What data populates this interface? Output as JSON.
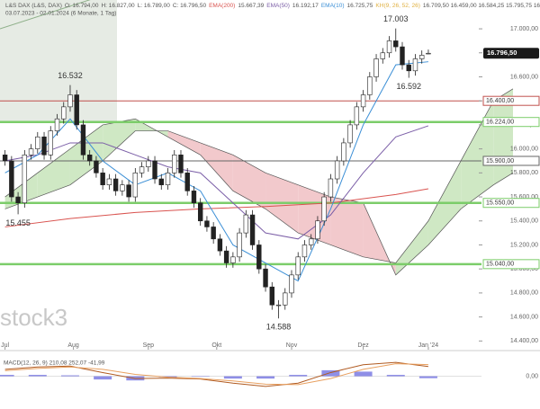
{
  "chart_data": {
    "type": "candlestick",
    "header": {
      "instrument": "L&S DAX (L&S, DAX)",
      "ohlc": [
        "O: 16.794,00",
        "H: 16.827,00",
        "L: 16.789,00",
        "C: 16.796,50"
      ],
      "indicators": [
        {
          "name": "EMA(200)",
          "value": "15.667,39",
          "color": "#d9534f"
        },
        {
          "name": "EMA(50)",
          "value": "16.192,17",
          "color": "#7b5ea7"
        },
        {
          "name": "EMA(10)",
          "value": "16.725,75",
          "color": "#3b8fd6"
        },
        {
          "name": "KH(9, 26, 52, 26)",
          "value": "16.709,50 16.459,00 16.584,25 15.795,75 16.796,50",
          "color": "#e0b040"
        }
      ],
      "range": "03.07.2023 - 02.01.2024 (6 Monate, 1 Tag)"
    },
    "watermark": "stock3",
    "xlim": [
      -1,
      156
    ],
    "ylim": [
      14350,
      17240
    ],
    "xticks": [
      {
        "value": 0,
        "label": "Jul"
      },
      {
        "value": 21,
        "label": "Aug"
      },
      {
        "value": 44,
        "label": "Sep"
      },
      {
        "value": 65,
        "label": "Okt"
      },
      {
        "value": 88,
        "label": "Nov"
      },
      {
        "value": 110,
        "label": "Dez"
      },
      {
        "value": 130,
        "label": "Jan '24"
      }
    ],
    "yticks": [
      {
        "value": 14400,
        "label": "14.400,00"
      },
      {
        "value": 14600,
        "label": "14.600,00"
      },
      {
        "value": 14800,
        "label": "14.800,00"
      },
      {
        "value": 15000,
        "label": "15.000,00"
      },
      {
        "value": 15200,
        "label": "15.200,00"
      },
      {
        "value": 15400,
        "label": "15.400,00"
      },
      {
        "value": 15600,
        "label": "15.600,00"
      },
      {
        "value": 15800,
        "label": "15.800,00"
      },
      {
        "value": 16000,
        "label": "16.000,00"
      },
      {
        "value": 16200,
        "label": "16.200,00"
      },
      {
        "value": 16400,
        "label": "16.400,00"
      },
      {
        "value": 16600,
        "label": "16.600,00"
      },
      {
        "value": 16800,
        "label": "16.800,00"
      },
      {
        "value": 17000,
        "label": "17.000,00"
      }
    ],
    "candles": {
      "x": [
        0,
        2,
        4,
        6,
        8,
        10,
        12,
        14,
        16,
        18,
        20,
        22,
        24,
        26,
        28,
        30,
        32,
        34,
        36,
        38,
        40,
        42,
        44,
        46,
        48,
        50,
        52,
        54,
        56,
        58,
        60,
        62,
        64,
        66,
        68,
        70,
        72,
        74,
        76,
        78,
        80,
        82,
        84,
        86,
        88,
        90,
        92,
        94,
        96,
        98,
        100,
        102,
        104,
        106,
        108,
        110,
        112,
        114,
        116,
        118,
        120,
        122,
        124,
        126,
        128,
        130
      ],
      "open": [
        15950,
        15900,
        15600,
        15550,
        15950,
        16000,
        16100,
        15950,
        16150,
        16250,
        16350,
        16450,
        16200,
        15950,
        15900,
        15800,
        15700,
        15750,
        15650,
        15700,
        15600,
        15800,
        15850,
        15900,
        15750,
        15700,
        15800,
        15950,
        15800,
        15650,
        15550,
        15400,
        15350,
        15250,
        15150,
        15050,
        15100,
        15300,
        15450,
        15200,
        15000,
        14850,
        14700,
        14700,
        14800,
        14950,
        15100,
        15200,
        15250,
        15400,
        15600,
        15750,
        15900,
        16050,
        16200,
        16350,
        16450,
        16600,
        16750,
        16800,
        16900,
        16850,
        16700,
        16650,
        16750,
        16794
      ],
      "high": [
        15990,
        15940,
        15640,
        15990,
        16040,
        16140,
        16140,
        16190,
        16290,
        16390,
        16532,
        16490,
        16240,
        15990,
        15940,
        15840,
        15790,
        15790,
        15740,
        15740,
        15840,
        15890,
        15940,
        15940,
        15790,
        15840,
        15990,
        15990,
        15840,
        15690,
        15590,
        15440,
        15390,
        15290,
        15190,
        15140,
        15340,
        15490,
        15490,
        15240,
        15040,
        14890,
        14740,
        14840,
        14990,
        15140,
        15240,
        15290,
        15440,
        15640,
        15790,
        15940,
        16090,
        16240,
        16390,
        16490,
        16640,
        16790,
        16840,
        16940,
        17003,
        16890,
        16740,
        16790,
        16820,
        16827
      ],
      "low": [
        15860,
        15560,
        15455,
        15510,
        15910,
        15960,
        15910,
        15910,
        16110,
        16210,
        16310,
        16160,
        15910,
        15860,
        15760,
        15660,
        15660,
        15610,
        15610,
        15560,
        15560,
        15760,
        15810,
        15710,
        15660,
        15660,
        15760,
        15760,
        15610,
        15510,
        15360,
        15310,
        15210,
        15110,
        15010,
        15010,
        15060,
        15260,
        15160,
        14960,
        14810,
        14660,
        14588,
        14660,
        14760,
        14910,
        15060,
        15160,
        15210,
        15360,
        15560,
        15710,
        15860,
        16010,
        16160,
        16310,
        16410,
        16560,
        16710,
        16760,
        16810,
        16660,
        16592,
        16610,
        16710,
        16789
      ],
      "close": [
        15900,
        15600,
        15550,
        15950,
        16000,
        16100,
        15950,
        16150,
        16250,
        16350,
        16450,
        16200,
        15950,
        15900,
        15800,
        15700,
        15750,
        15650,
        15700,
        15600,
        15800,
        15850,
        15900,
        15750,
        15700,
        15800,
        15950,
        15800,
        15650,
        15550,
        15400,
        15350,
        15250,
        15150,
        15050,
        15100,
        15300,
        15450,
        15200,
        15000,
        14850,
        14700,
        14700,
        14800,
        14950,
        15100,
        15200,
        15250,
        15400,
        15600,
        15750,
        15900,
        16050,
        16200,
        16350,
        16450,
        16600,
        16750,
        16800,
        16900,
        16850,
        16700,
        16650,
        16750,
        16780,
        16796.5
      ]
    },
    "lines": [
      {
        "name": "EMA(200)",
        "color": "#d9534f",
        "x": [
          0,
          20,
          40,
          60,
          80,
          100,
          120,
          130
        ],
        "values": [
          15350,
          15420,
          15470,
          15500,
          15520,
          15550,
          15620,
          15667.39
        ]
      },
      {
        "name": "EMA(50)",
        "color": "#7b5ea7",
        "x": [
          0,
          10,
          20,
          30,
          40,
          50,
          60,
          70,
          80,
          90,
          100,
          110,
          120,
          130
        ],
        "values": [
          15900,
          15950,
          16050,
          16050,
          15950,
          15850,
          15800,
          15550,
          15300,
          15250,
          15450,
          15800,
          16100,
          16192.17
        ]
      },
      {
        "name": "EMA(10)",
        "color": "#3b8fd6",
        "x": [
          0,
          10,
          20,
          30,
          40,
          50,
          60,
          70,
          80,
          90,
          100,
          110,
          120,
          130
        ],
        "values": [
          15800,
          15950,
          16250,
          15900,
          15700,
          15800,
          15650,
          15200,
          15050,
          14900,
          15500,
          16200,
          16700,
          16725.75
        ]
      }
    ],
    "cloud": {
      "x": [
        0,
        10,
        20,
        30,
        40,
        50,
        60,
        70,
        80,
        90,
        100,
        110,
        120,
        130,
        140,
        150,
        156
      ],
      "span_a": [
        15600,
        15800,
        16000,
        16200,
        16250,
        16100,
        15950,
        15650,
        15500,
        15300,
        15200,
        15100,
        15050,
        15400,
        15900,
        16400,
        16500
      ],
      "span_b": [
        15500,
        15600,
        15700,
        15900,
        16150,
        16150,
        16050,
        15950,
        15800,
        15700,
        15600,
        15550,
        14950,
        15200,
        15500,
        15700,
        15800
      ],
      "up_color": "#cfe8c4",
      "down_color": "#f2c9cc"
    },
    "levels": [
      {
        "value": 16400,
        "label": "16.400,00",
        "color": "#c0504d"
      },
      {
        "value": 16224,
        "label": "16.224,00",
        "color": "#7ccd6a"
      },
      {
        "value": 15900,
        "label": "15.900,00",
        "color": "#666666"
      },
      {
        "value": 15550,
        "label": "15.550,00",
        "color": "#7ccd6a"
      },
      {
        "value": 15040,
        "label": "15.040,00",
        "color": "#7ccd6a"
      }
    ],
    "last_price": {
      "value": 16796.5,
      "label": "16.796,50"
    },
    "annotations": [
      {
        "x": 120,
        "value": 17003,
        "label": "17.003",
        "side": "above"
      },
      {
        "x": 124,
        "value": 16592,
        "label": "16.592",
        "side": "below"
      },
      {
        "x": 84,
        "value": 14588,
        "label": "14.588",
        "side": "below"
      },
      {
        "x": 20,
        "value": 16532,
        "label": "16.532",
        "side": "above"
      },
      {
        "x": 4,
        "value": 15455,
        "label": "15.455",
        "side": "below"
      }
    ],
    "macd": {
      "legend": "MACD(12, 26, 9) 210,08 252,07 -41,99",
      "ylim": [
        -300,
        400
      ],
      "yticks": [
        {
          "value": 0,
          "label": "0,00"
        }
      ],
      "x": [
        0,
        10,
        20,
        30,
        40,
        50,
        60,
        70,
        80,
        90,
        100,
        110,
        120,
        130
      ],
      "macd": [
        150,
        200,
        220,
        80,
        -50,
        -40,
        -60,
        -150,
        -220,
        -150,
        80,
        250,
        300,
        210.08
      ],
      "signal": [
        120,
        170,
        200,
        150,
        40,
        -20,
        -50,
        -100,
        -170,
        -180,
        -50,
        150,
        270,
        252.07
      ],
      "histogram": [
        30,
        30,
        20,
        -70,
        -90,
        -20,
        -10,
        -50,
        -50,
        30,
        130,
        100,
        30,
        -41.99
      ],
      "macd_color": "#b05a20",
      "signal_color": "#e8a060",
      "hist_color": "#6a6adf"
    }
  }
}
